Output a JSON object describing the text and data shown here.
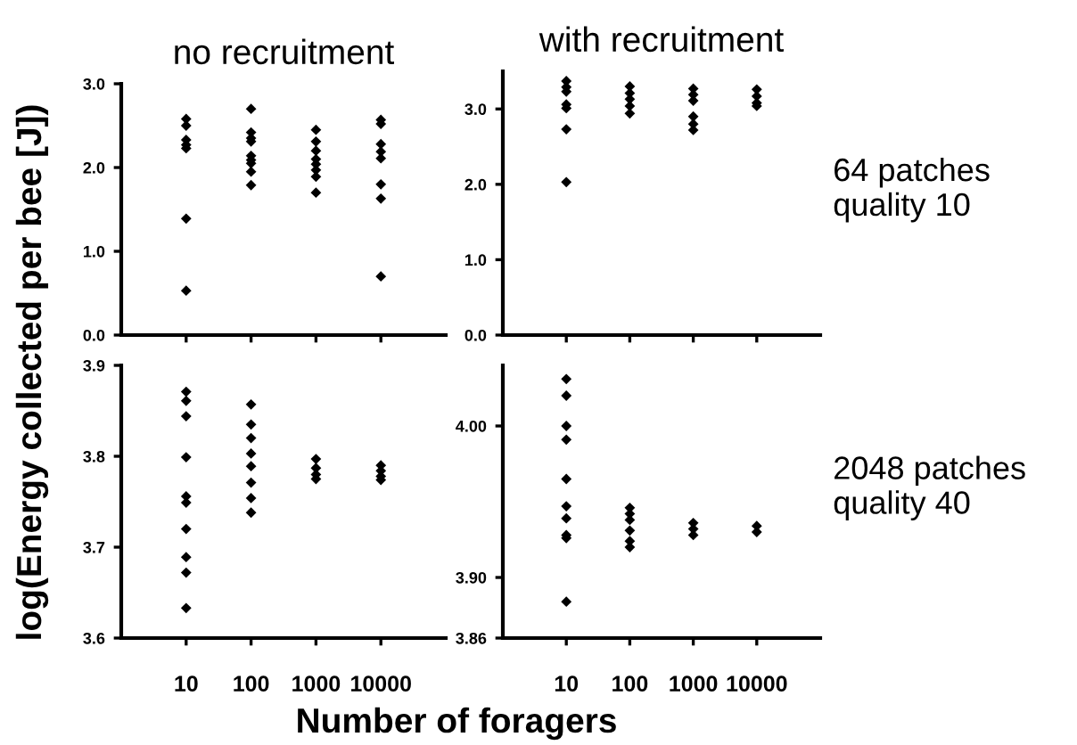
{
  "chart_data": [
    {
      "type": "scatter",
      "title": "no recruitment",
      "ylabel": "log(Energy collected per bee [J])",
      "log": "x",
      "xlim": [
        1,
        100000
      ],
      "xticks": [
        10,
        100,
        1000,
        10000
      ],
      "tick_labels": "y",
      "marker": "diamond",
      "ylim": [
        0,
        3
      ],
      "yticks": [
        {
          "value": 0,
          "label": "0.0"
        },
        {
          "value": 1,
          "label": "1.0"
        },
        {
          "value": 2,
          "label": "2.0"
        },
        {
          "value": 3,
          "label": "3.0"
        }
      ],
      "series": [
        {
          "color": "#000000",
          "x": [
            10,
            10,
            10,
            10,
            10,
            10,
            10,
            100,
            100,
            100,
            100,
            100,
            100,
            100,
            100,
            100,
            1000,
            1000,
            1000,
            1000,
            1000,
            1000,
            1000,
            1000,
            10000,
            10000,
            10000,
            10000,
            10000,
            10000,
            10000,
            10000
          ],
          "values": [
            2.58,
            2.5,
            2.33,
            2.27,
            2.23,
            1.39,
            0.53,
            2.7,
            2.42,
            2.35,
            2.31,
            2.14,
            2.09,
            2.05,
            1.95,
            1.79,
            2.45,
            2.31,
            2.2,
            2.1,
            2.04,
            1.97,
            1.89,
            1.7,
            2.57,
            2.52,
            2.28,
            2.19,
            2.11,
            1.8,
            1.63,
            0.7
          ]
        }
      ]
    },
    {
      "type": "scatter",
      "title": "with recruitment",
      "annotations": [
        "64 patches\nquality 10"
      ],
      "log": "x",
      "xlim": [
        1,
        100000
      ],
      "xticks": [
        10,
        100,
        1000,
        10000
      ],
      "tick_labels": "y",
      "marker": "diamond",
      "ylim": [
        0,
        3.5
      ],
      "yticks": [
        {
          "value": 0,
          "label": "0.0"
        },
        {
          "value": 1,
          "label": "1.0"
        },
        {
          "value": 2,
          "label": "2.0"
        },
        {
          "value": 3,
          "label": "3.0"
        }
      ],
      "series": [
        {
          "color": "#000000",
          "x": [
            10,
            10,
            10,
            10,
            10,
            10,
            10,
            100,
            100,
            100,
            100,
            100,
            1000,
            1000,
            1000,
            1000,
            1000,
            1000,
            10000,
            10000,
            10000,
            10000
          ],
          "values": [
            3.37,
            3.29,
            3.23,
            3.06,
            3.01,
            2.73,
            2.03,
            3.3,
            3.21,
            3.13,
            3.04,
            2.94,
            3.27,
            3.19,
            3.11,
            2.9,
            2.8,
            2.72,
            3.26,
            3.17,
            3.08,
            3.04
          ]
        }
      ]
    },
    {
      "type": "scatter",
      "xlabel": "Number of foragers",
      "log": "x",
      "xlim": [
        1,
        100000
      ],
      "xticks": [
        10,
        100,
        1000,
        10000
      ],
      "marker": "diamond",
      "ylim": [
        3.6,
        3.9
      ],
      "yticks": [
        3.6,
        3.7,
        3.8,
        3.9
      ],
      "series": [
        {
          "color": "#000000",
          "x": [
            10,
            10,
            10,
            10,
            10,
            10,
            10,
            10,
            10,
            10,
            100,
            100,
            100,
            100,
            100,
            100,
            100,
            100,
            1000,
            1000,
            1000,
            1000,
            10000,
            10000,
            10000,
            10000
          ],
          "values": [
            3.871,
            3.861,
            3.844,
            3.799,
            3.756,
            3.749,
            3.72,
            3.689,
            3.672,
            3.633,
            3.857,
            3.835,
            3.82,
            3.803,
            3.789,
            3.771,
            3.754,
            3.738,
            3.797,
            3.787,
            3.78,
            3.775,
            3.79,
            3.784,
            3.778,
            3.774
          ]
        }
      ]
    },
    {
      "type": "scatter",
      "annotations": [
        "2048 patches\nquality 40"
      ],
      "log": "x",
      "xlim": [
        1,
        100000
      ],
      "xticks": [
        10,
        100,
        1000,
        10000
      ],
      "marker": "diamond",
      "ylim": [
        3.86,
        4.04
      ],
      "yticks": [
        3.86,
        {
          "value": 3.9,
          "label": "3.90"
        },
        {
          "value": 4.0,
          "label": "4.00"
        }
      ],
      "series": [
        {
          "color": "#000000",
          "x": [
            10,
            10,
            10,
            10,
            10,
            10,
            10,
            10,
            10,
            10,
            100,
            100,
            100,
            100,
            100,
            100,
            1000,
            1000,
            1000,
            10000,
            10000
          ],
          "values": [
            4.031,
            4.02,
            4.0,
            3.991,
            3.965,
            3.947,
            3.939,
            3.928,
            3.926,
            3.884,
            3.946,
            3.942,
            3.938,
            3.931,
            3.924,
            3.92,
            3.936,
            3.932,
            3.928,
            3.934,
            3.93
          ]
        }
      ]
    }
  ]
}
